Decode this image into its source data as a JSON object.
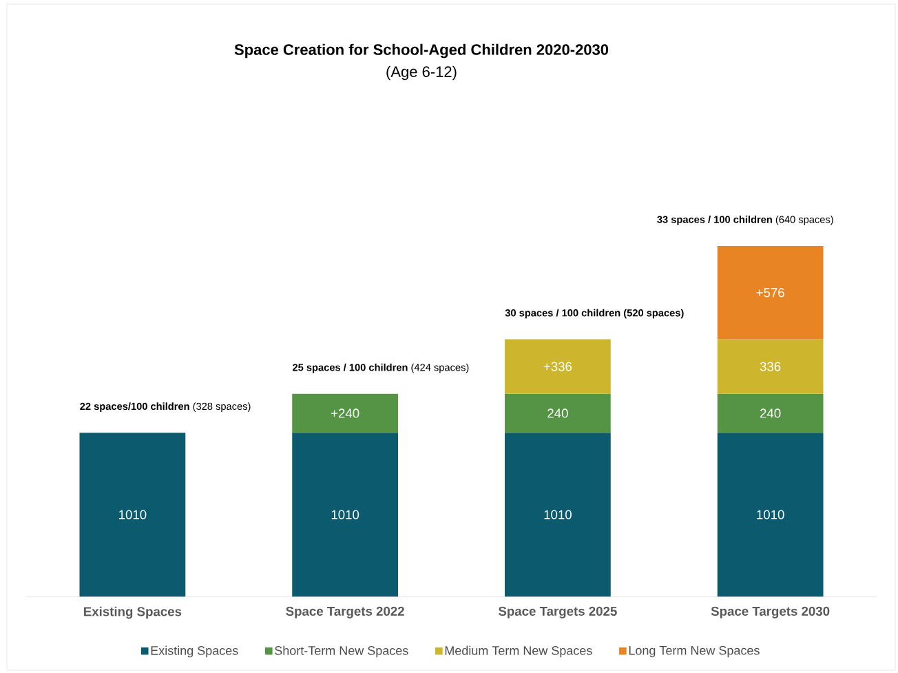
{
  "chart_data": {
    "type": "bar",
    "stacked": true,
    "title": "Space Creation for School-Aged Children 2020-2030",
    "subtitle": "(Age 6-12)",
    "categories": [
      "Existing Spaces",
      "Space Targets 2022",
      "Space Targets 2025",
      "Space Targets 2030"
    ],
    "series": [
      {
        "name": "Existing Spaces",
        "color": "#0b5a6e",
        "values": [
          1010,
          1010,
          1010,
          1010
        ],
        "value_labels": [
          "1010",
          "1010",
          "1010",
          "1010"
        ]
      },
      {
        "name": "Short-Term New Spaces",
        "color": "#559444",
        "values": [
          null,
          240,
          240,
          240
        ],
        "value_labels": [
          null,
          "+240",
          "240",
          "240"
        ]
      },
      {
        "name": "Medium Term New Spaces",
        "color": "#cdb62e",
        "values": [
          null,
          null,
          336,
          336
        ],
        "value_labels": [
          null,
          null,
          "+336",
          "336"
        ]
      },
      {
        "name": "Long Term New Spaces",
        "color": "#e88424",
        "values": [
          null,
          null,
          null,
          576
        ],
        "value_labels": [
          null,
          null,
          null,
          "+576"
        ]
      }
    ],
    "annotations": [
      {
        "text": "**22 spaces/100 children** (328 spaces)",
        "x": "Existing Spaces",
        "y": 1010
      },
      {
        "text": "**25 spaces / 100 children** (424 spaces)",
        "x": "Space Targets 2022",
        "y": 1250
      },
      {
        "text": "**30 spaces / 100 children (520 spaces)**",
        "x": "Space Targets 2025",
        "y": 1586
      },
      {
        "text": "**33 spaces / 100 children** (640 spaces)",
        "x": "Space Targets 2030",
        "y": 2162
      }
    ],
    "legend": "bottom"
  }
}
